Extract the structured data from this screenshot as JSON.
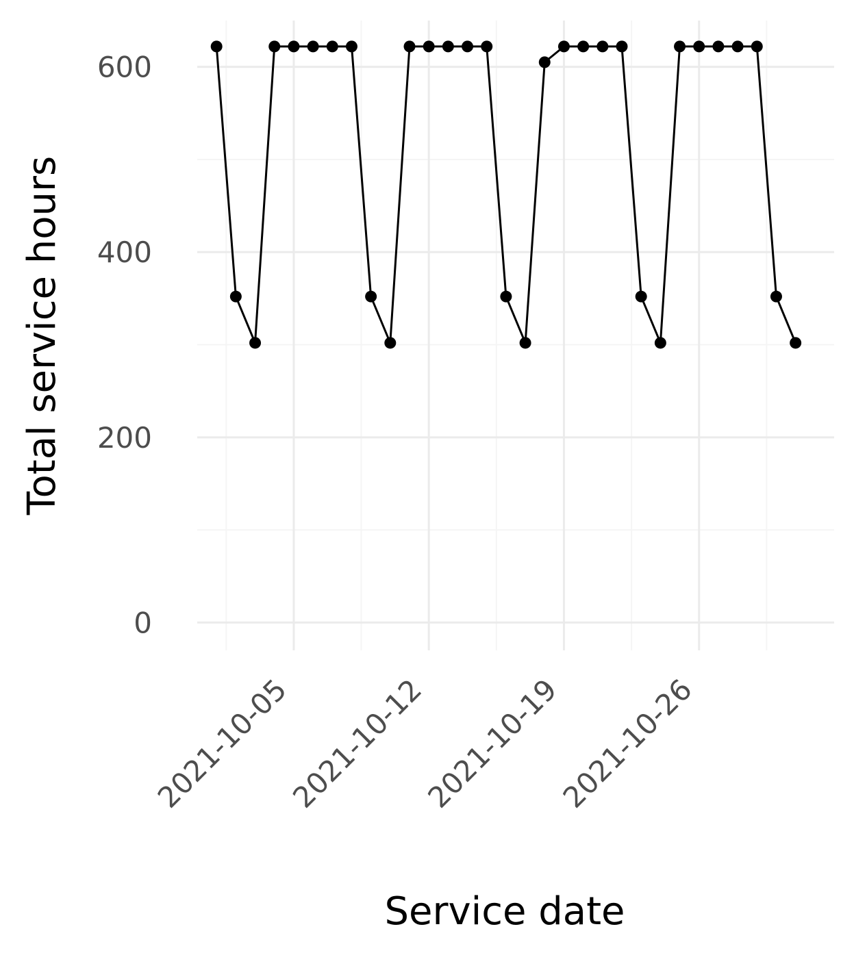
{
  "chart_data": {
    "type": "line",
    "markers": true,
    "xlabel": "Service date",
    "ylabel": "Total service hours",
    "x_ticks": [
      "2021-10-05",
      "2021-10-12",
      "2021-10-19",
      "2021-10-26"
    ],
    "y_ticks": [
      0,
      200,
      400,
      600
    ],
    "xlim": [
      "2021-09-30",
      "2021-11-02"
    ],
    "ylim": [
      -30,
      650
    ],
    "grid": true,
    "legend": "none",
    "colors": {
      "line": "#000000",
      "grid_major": "#ebebeb",
      "grid_minor": "#f5f5f5"
    },
    "series": [
      {
        "x": [
          "2021-10-01",
          "2021-10-02",
          "2021-10-03",
          "2021-10-04",
          "2021-10-05",
          "2021-10-06",
          "2021-10-07",
          "2021-10-08",
          "2021-10-09",
          "2021-10-10",
          "2021-10-11",
          "2021-10-12",
          "2021-10-13",
          "2021-10-14",
          "2021-10-15",
          "2021-10-16",
          "2021-10-17",
          "2021-10-18",
          "2021-10-19",
          "2021-10-20",
          "2021-10-21",
          "2021-10-22",
          "2021-10-23",
          "2021-10-24",
          "2021-10-25",
          "2021-10-26",
          "2021-10-27",
          "2021-10-28",
          "2021-10-29",
          "2021-10-30",
          "2021-10-31"
        ],
        "values": [
          622,
          352,
          302,
          622,
          622,
          622,
          622,
          622,
          352,
          302,
          622,
          622,
          622,
          622,
          622,
          352,
          302,
          605,
          622,
          622,
          622,
          622,
          352,
          302,
          622,
          622,
          622,
          622,
          622,
          352,
          302
        ]
      }
    ]
  }
}
